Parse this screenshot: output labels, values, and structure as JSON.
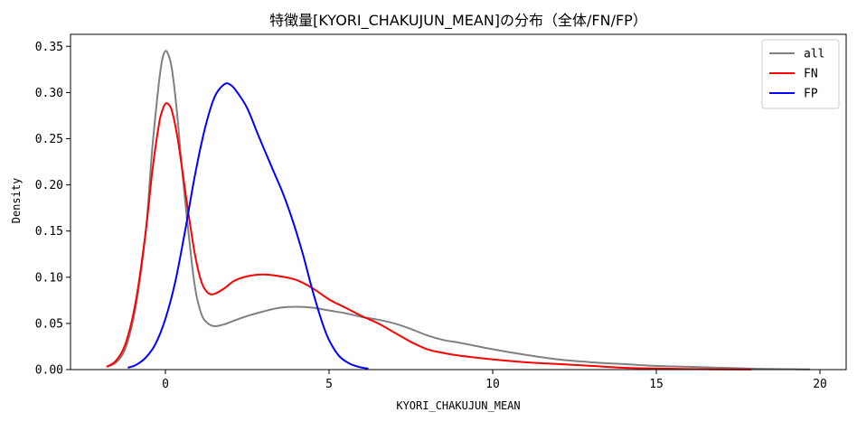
{
  "chart_data": {
    "type": "line",
    "title": "特徴量[KYORI_CHAKUJUN_MEAN]の分布（全体/FN/FP）",
    "xlabel": "KYORI_CHAKUJUN_MEAN",
    "ylabel": "Density",
    "xlim": [
      -2.9,
      20.8
    ],
    "ylim": [
      0,
      0.363
    ],
    "xticks": [
      0,
      5,
      10,
      15,
      20
    ],
    "yticks": [
      0.0,
      0.05,
      0.1,
      0.15,
      0.2,
      0.25,
      0.3,
      0.35
    ],
    "grid": false,
    "legend_position": "top-right",
    "series": [
      {
        "name": "all",
        "color": "#808080",
        "x": [
          -1.8,
          -1.5,
          -1.2,
          -0.9,
          -0.6,
          -0.4,
          -0.2,
          -0.1,
          0,
          0.1,
          0.2,
          0.35,
          0.5,
          0.7,
          0.9,
          1.1,
          1.3,
          1.5,
          1.8,
          2.1,
          2.5,
          3.0,
          3.5,
          4.0,
          4.5,
          5.0,
          5.5,
          6.0,
          6.5,
          7.0,
          7.5,
          8.0,
          8.5,
          9.0,
          10.0,
          11.0,
          12.0,
          13.0,
          14.0,
          15.0,
          16.0,
          17.0,
          18.0,
          19.0,
          19.7
        ],
        "y": [
          0.003,
          0.008,
          0.025,
          0.07,
          0.15,
          0.24,
          0.31,
          0.335,
          0.345,
          0.34,
          0.325,
          0.28,
          0.22,
          0.15,
          0.09,
          0.06,
          0.05,
          0.047,
          0.049,
          0.053,
          0.058,
          0.063,
          0.067,
          0.068,
          0.067,
          0.064,
          0.061,
          0.057,
          0.054,
          0.05,
          0.044,
          0.037,
          0.032,
          0.029,
          0.022,
          0.016,
          0.011,
          0.008,
          0.006,
          0.004,
          0.003,
          0.002,
          0.001,
          0.0005,
          0.0002
        ]
      },
      {
        "name": "FN",
        "color": "#ff0000",
        "x": [
          -1.8,
          -1.5,
          -1.2,
          -0.9,
          -0.6,
          -0.4,
          -0.2,
          -0.1,
          0,
          0.1,
          0.2,
          0.35,
          0.5,
          0.7,
          0.9,
          1.1,
          1.3,
          1.5,
          1.8,
          2.1,
          2.5,
          3.0,
          3.5,
          4.0,
          4.5,
          5.0,
          5.5,
          6.0,
          6.5,
          7.0,
          7.5,
          8.0,
          8.5,
          9.0,
          10.0,
          11.0,
          12.0,
          13.0,
          14.0,
          15.0,
          16.0,
          17.0,
          17.9
        ],
        "y": [
          0.003,
          0.01,
          0.03,
          0.075,
          0.15,
          0.215,
          0.265,
          0.28,
          0.288,
          0.287,
          0.28,
          0.255,
          0.22,
          0.17,
          0.125,
          0.095,
          0.083,
          0.082,
          0.088,
          0.096,
          0.101,
          0.103,
          0.101,
          0.097,
          0.088,
          0.076,
          0.067,
          0.058,
          0.05,
          0.04,
          0.03,
          0.022,
          0.018,
          0.015,
          0.011,
          0.008,
          0.006,
          0.004,
          0.002,
          0.0012,
          0.0006,
          0.0003,
          0.0001
        ]
      },
      {
        "name": "FP",
        "color": "#0000ff",
        "x": [
          -1.15,
          -0.9,
          -0.6,
          -0.3,
          0,
          0.3,
          0.6,
          0.9,
          1.2,
          1.5,
          1.8,
          2.0,
          2.2,
          2.5,
          2.8,
          3.0,
          3.3,
          3.6,
          3.9,
          4.2,
          4.5,
          4.8,
          5.0,
          5.3,
          5.6,
          5.9,
          6.2
        ],
        "y": [
          0.002,
          0.005,
          0.013,
          0.028,
          0.055,
          0.095,
          0.15,
          0.21,
          0.26,
          0.295,
          0.309,
          0.308,
          0.3,
          0.283,
          0.257,
          0.24,
          0.215,
          0.19,
          0.16,
          0.125,
          0.085,
          0.05,
          0.032,
          0.015,
          0.007,
          0.003,
          0.001
        ]
      }
    ]
  }
}
